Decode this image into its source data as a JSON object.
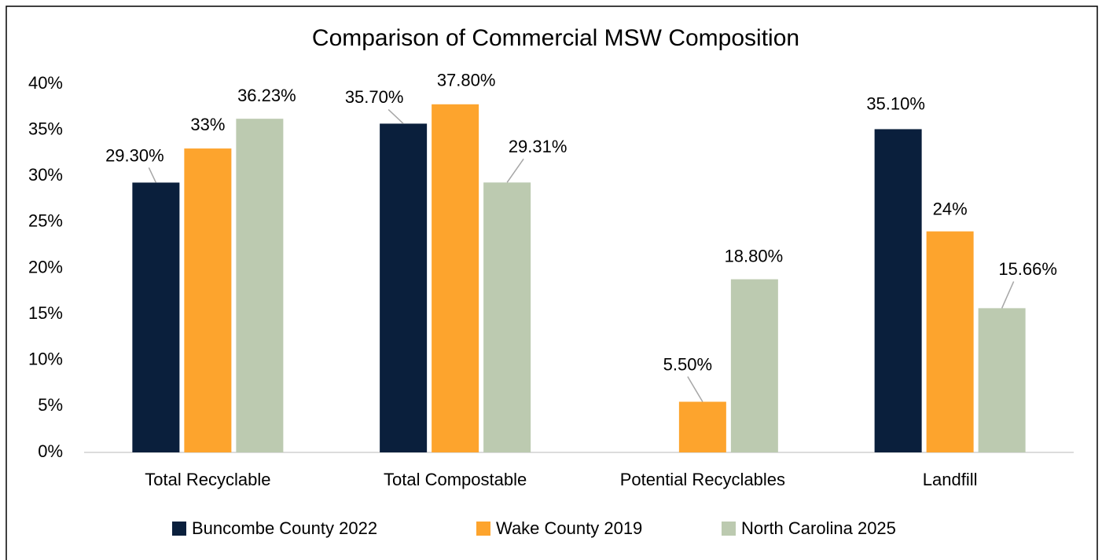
{
  "chart_data": {
    "type": "bar",
    "title": "Comparison of Commercial MSW Composition",
    "categories": [
      "Total Recyclable",
      "Total Compostable",
      "Potential Recyclables",
      "Landfill"
    ],
    "series": [
      {
        "name": "Buncombe County 2022",
        "color": "#0a1f3c",
        "values": [
          29.3,
          35.7,
          null,
          35.1
        ],
        "value_labels": [
          "29.30%",
          "35.70%",
          null,
          "35.10%"
        ]
      },
      {
        "name": "Wake County 2019",
        "color": "#fda42d",
        "values": [
          33,
          37.8,
          5.5,
          24
        ],
        "value_labels": [
          "33%",
          "37.80%",
          "5.50%",
          "24%"
        ]
      },
      {
        "name": "North Carolina 2025",
        "color": "#bccab0",
        "values": [
          36.23,
          29.31,
          18.8,
          15.66
        ],
        "value_labels": [
          "36.23%",
          "29.31%",
          "18.80%",
          "15.66%"
        ]
      }
    ],
    "ylim": [
      0,
      40
    ],
    "yticks": [
      {
        "value": 0,
        "label": "0%"
      },
      {
        "value": 5,
        "label": "5%"
      },
      {
        "value": 10,
        "label": "10%"
      },
      {
        "value": 15,
        "label": "15%"
      },
      {
        "value": 20,
        "label": "20%"
      },
      {
        "value": 25,
        "label": "25%"
      },
      {
        "value": 30,
        "label": "30%"
      },
      {
        "value": 35,
        "label": "35%"
      },
      {
        "value": 40,
        "label": "40%"
      }
    ],
    "legend": "bottom"
  }
}
